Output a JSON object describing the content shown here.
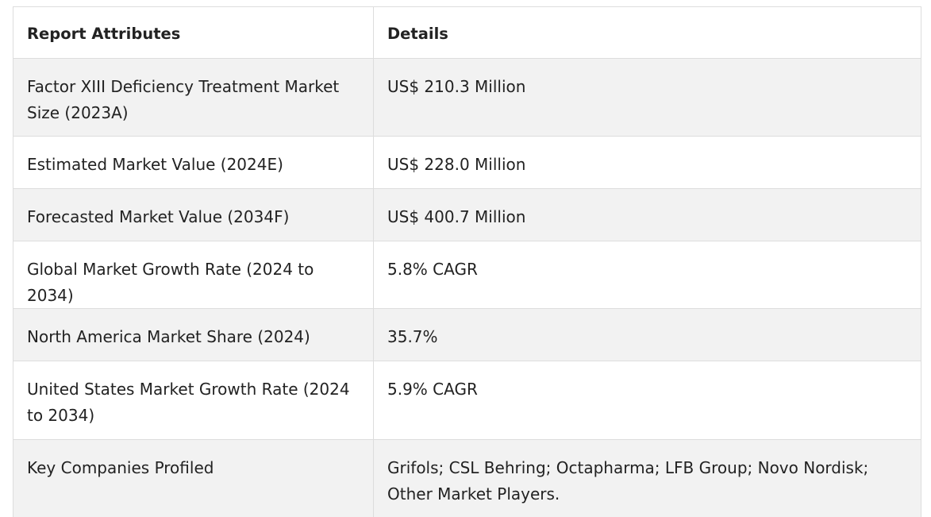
{
  "table": {
    "headers": [
      "Report Attributes",
      "Details"
    ],
    "rows": [
      [
        "Factor XIII Deficiency Treatment Market Size (2023A)",
        "US$ 210.3 Million"
      ],
      [
        "Estimated Market Value (2024E)",
        "US$ 228.0 Million"
      ],
      [
        "Forecasted Market Value (2034F)",
        "US$ 400.7 Million"
      ],
      [
        "Global Market Growth Rate (2024 to 2034)",
        "5.8% CAGR"
      ],
      [
        "North America Market Share (2024)",
        "35.7%"
      ],
      [
        "United States Market Growth Rate (2024 to 2034)",
        "5.9% CAGR"
      ],
      [
        "Key Companies Profiled",
        "Grifols; CSL Behring; Octapharma; LFB Group; Novo Nordisk; Other Market Players."
      ]
    ]
  }
}
